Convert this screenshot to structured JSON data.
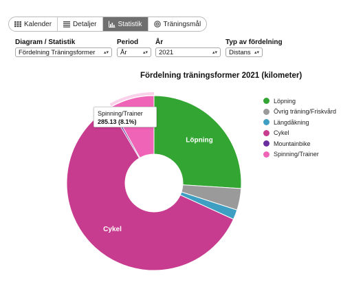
{
  "tabs": [
    {
      "label": "Kalender",
      "icon": "calendar-icon",
      "active": false
    },
    {
      "label": "Detaljer",
      "icon": "list-icon",
      "active": false
    },
    {
      "label": "Statistik",
      "icon": "bar-chart-icon",
      "active": true
    },
    {
      "label": "Träningsmål",
      "icon": "target-icon",
      "active": false
    }
  ],
  "filters": {
    "diagram": {
      "label": "Diagram / Statistik",
      "value": "Fördelning Träningsformer"
    },
    "period": {
      "label": "Period",
      "value": "År"
    },
    "year": {
      "label": "År",
      "value": "2021"
    },
    "distribution": {
      "label": "Typ av fördelning",
      "value": "Distans"
    }
  },
  "tooltip": {
    "name": "Spinning/Trainer",
    "value": "285.13 (8.1%)"
  },
  "chart_data": {
    "type": "pie",
    "title": "Fördelning träningsformer 2021 (kilometer)",
    "donut": true,
    "legend_position": "right",
    "slices": [
      {
        "name": "Löpning",
        "value": 26.0,
        "color": "#33a532",
        "show_label": true
      },
      {
        "name": "Övrig träning/Friskvård",
        "value": 4.0,
        "color": "#9a9a9a",
        "show_label": false
      },
      {
        "name": "Längdåkning",
        "value": 1.8,
        "color": "#3e9fc2",
        "show_label": false
      },
      {
        "name": "Cykel",
        "value": 59.7,
        "color": "#c83c8f",
        "show_label": true
      },
      {
        "name": "Mountainbike",
        "value": 0.4,
        "color": "#6a2f9e",
        "show_label": false
      },
      {
        "name": "Spinning/Trainer",
        "value": 8.1,
        "color": "#f064b8",
        "show_label": false
      }
    ]
  }
}
